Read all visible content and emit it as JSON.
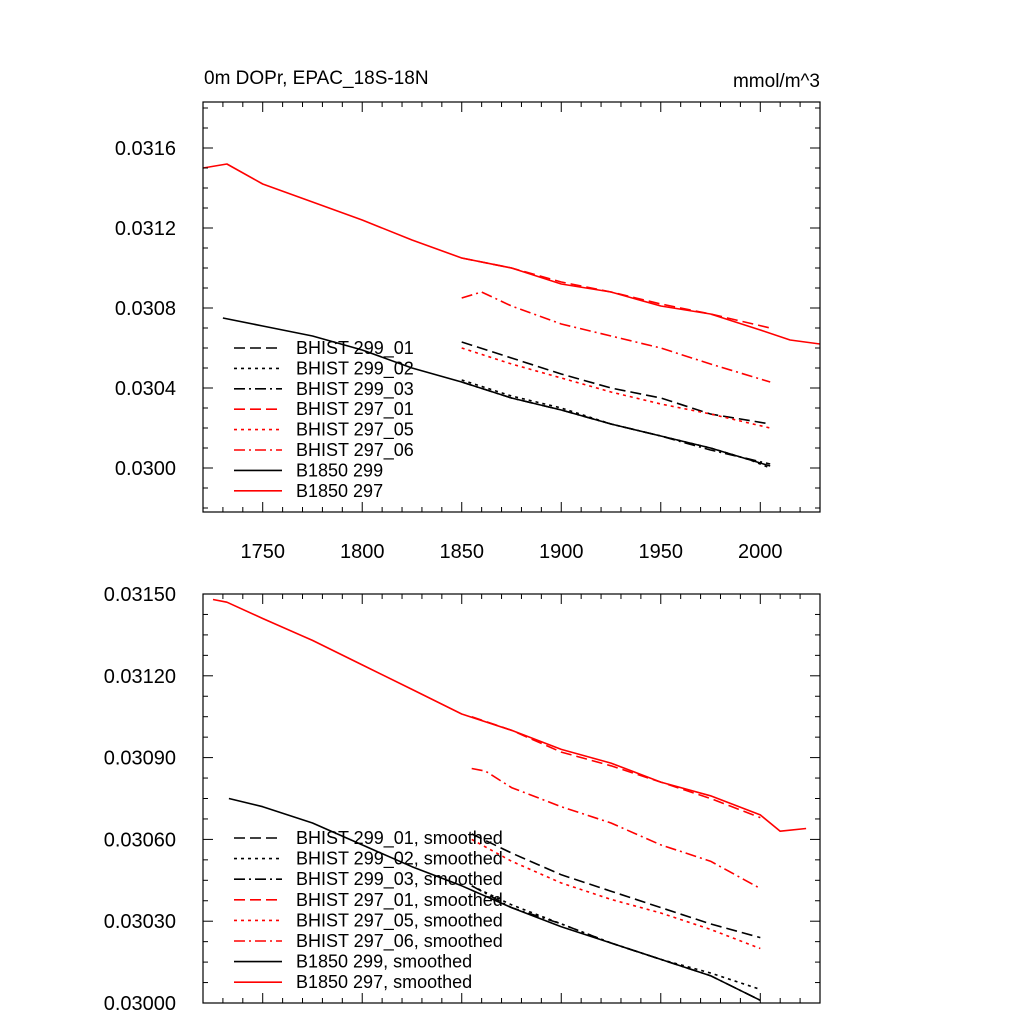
{
  "colors": {
    "black": "#000000",
    "red": "#ff0000"
  },
  "chart_data": [
    {
      "type": "line",
      "title": "0m DOPr, EPAC_18S-18N",
      "units": "mmol/m^3",
      "xlim": [
        1720,
        2030
      ],
      "ylim": [
        0.02978,
        0.03183
      ],
      "x_ticks": [
        1750,
        1800,
        1850,
        1900,
        1950,
        2000
      ],
      "x_tick_labels": [
        "1750",
        "1800",
        "1850",
        "1900",
        "1950",
        "2000"
      ],
      "y_ticks": [
        0.03,
        0.0304,
        0.0308,
        0.0312,
        0.0316
      ],
      "y_tick_labels": [
        "0.0300",
        "0.0304",
        "0.0308",
        "0.0312",
        "0.0316"
      ],
      "legend_position": "lower-left",
      "series": [
        {
          "name": "BHIST 299_01",
          "color": "#000000",
          "dash": "dashed",
          "x": [
            1850,
            1875,
            1900,
            1925,
            1950,
            1975,
            2005
          ],
          "y": [
            0.03063,
            0.03055,
            0.03047,
            0.0304,
            0.03035,
            0.03027,
            0.03022
          ]
        },
        {
          "name": "BHIST 299_02",
          "color": "#000000",
          "dash": "dotted",
          "x": [
            1850,
            1875,
            1900,
            1925,
            1950,
            1975,
            1995,
            2005
          ],
          "y": [
            0.03044,
            0.03036,
            0.0303,
            0.03022,
            0.03016,
            0.0301,
            0.03004,
            0.03
          ]
        },
        {
          "name": "BHIST 299_03",
          "color": "#000000",
          "dash": "dashdot",
          "x": [
            1850,
            1875,
            1900,
            1925,
            1950,
            1975,
            2005
          ],
          "y": [
            0.03043,
            0.03035,
            0.03029,
            0.03022,
            0.03016,
            0.03009,
            0.03002
          ]
        },
        {
          "name": "BHIST 297_01",
          "color": "#ff0000",
          "dash": "dashed",
          "x": [
            1850,
            1875,
            1900,
            1925,
            1950,
            1975,
            2005
          ],
          "y": [
            0.03105,
            0.031,
            0.03093,
            0.03088,
            0.03082,
            0.03077,
            0.0307
          ]
        },
        {
          "name": "BHIST 297_05",
          "color": "#ff0000",
          "dash": "dotted",
          "x": [
            1850,
            1875,
            1900,
            1925,
            1950,
            1975,
            2005
          ],
          "y": [
            0.0306,
            0.03052,
            0.03045,
            0.03038,
            0.03032,
            0.03027,
            0.0302
          ]
        },
        {
          "name": "BHIST 297_06",
          "color": "#ff0000",
          "dash": "dashdot",
          "x": [
            1850,
            1860,
            1875,
            1900,
            1925,
            1950,
            1975,
            2005
          ],
          "y": [
            0.03085,
            0.03088,
            0.03081,
            0.03072,
            0.03066,
            0.0306,
            0.03052,
            0.03043
          ]
        },
        {
          "name": "B1850 299",
          "color": "#000000",
          "dash": "solid",
          "x": [
            1730,
            1750,
            1775,
            1800,
            1825,
            1850,
            1875,
            1900,
            1925,
            1950,
            1975,
            2005
          ],
          "y": [
            0.03075,
            0.03071,
            0.03066,
            0.03059,
            0.0305,
            0.03043,
            0.03035,
            0.03029,
            0.03022,
            0.03016,
            0.0301,
            0.03001
          ]
        },
        {
          "name": "B1850 297",
          "color": "#ff0000",
          "dash": "solid",
          "x": [
            1720,
            1732,
            1750,
            1775,
            1800,
            1825,
            1850,
            1875,
            1900,
            1925,
            1950,
            1975,
            2000,
            2015,
            2030
          ],
          "y": [
            0.0315,
            0.03152,
            0.03142,
            0.03133,
            0.03124,
            0.03114,
            0.03105,
            0.031,
            0.03092,
            0.03088,
            0.03081,
            0.03077,
            0.03069,
            0.03064,
            0.03062
          ]
        }
      ]
    },
    {
      "type": "line",
      "xlim": [
        1720,
        2030
      ],
      "ylim": [
        0.03,
        0.0315
      ],
      "x_ticks": [
        1750,
        1800,
        1850,
        1900,
        1950,
        2000
      ],
      "y_ticks": [
        0.03,
        0.0303,
        0.0306,
        0.0309,
        0.0312,
        0.0315
      ],
      "y_tick_labels": [
        "0.03000",
        "0.03030",
        "0.03060",
        "0.03090",
        "0.03120",
        "0.03150"
      ],
      "legend_position": "lower-left",
      "series": [
        {
          "name": "BHIST 299_01, smoothed",
          "color": "#000000",
          "dash": "dashed",
          "x": [
            1855,
            1875,
            1900,
            1925,
            1950,
            1975,
            2000
          ],
          "y": [
            0.03062,
            0.03055,
            0.03047,
            0.03041,
            0.03035,
            0.03029,
            0.03024
          ]
        },
        {
          "name": "BHIST 299_02, smoothed",
          "color": "#000000",
          "dash": "dotted",
          "x": [
            1855,
            1875,
            1900,
            1925,
            1950,
            1975,
            2000
          ],
          "y": [
            0.03043,
            0.03036,
            0.03029,
            0.03022,
            0.03016,
            0.03011,
            0.03005
          ]
        },
        {
          "name": "BHIST 299_03, smoothed",
          "color": "#000000",
          "dash": "dashdot",
          "x": [
            1855,
            1875,
            1900,
            1925,
            1950,
            1975,
            2000
          ],
          "y": [
            0.03043,
            0.03035,
            0.03029,
            0.03022,
            0.03016,
            0.0301,
            0.03001
          ]
        },
        {
          "name": "BHIST 297_01, smoothed",
          "color": "#ff0000",
          "dash": "dashed",
          "x": [
            1855,
            1875,
            1900,
            1925,
            1950,
            1975,
            2000
          ],
          "y": [
            0.03105,
            0.031,
            0.03092,
            0.03087,
            0.03081,
            0.03075,
            0.03068
          ]
        },
        {
          "name": "BHIST 297_05, smoothed",
          "color": "#ff0000",
          "dash": "dotted",
          "x": [
            1855,
            1875,
            1900,
            1925,
            1950,
            1975,
            2000
          ],
          "y": [
            0.0306,
            0.03052,
            0.03044,
            0.03038,
            0.03033,
            0.03027,
            0.0302
          ]
        },
        {
          "name": "BHIST 297_06, smoothed",
          "color": "#ff0000",
          "dash": "dashdot",
          "x": [
            1855,
            1862,
            1875,
            1900,
            1925,
            1950,
            1975,
            2000
          ],
          "y": [
            0.03086,
            0.03085,
            0.03079,
            0.03072,
            0.03066,
            0.03058,
            0.03052,
            0.03042
          ]
        },
        {
          "name": "B1850 299, smoothed",
          "color": "#000000",
          "dash": "solid",
          "x": [
            1733,
            1750,
            1775,
            1800,
            1825,
            1850,
            1875,
            1900,
            1925,
            1950,
            1975,
            2000
          ],
          "y": [
            0.03075,
            0.03072,
            0.03066,
            0.03058,
            0.0305,
            0.03043,
            0.03035,
            0.03028,
            0.03022,
            0.03016,
            0.0301,
            0.03001
          ]
        },
        {
          "name": "B1850 297, smoothed",
          "color": "#ff0000",
          "dash": "solid",
          "x": [
            1725,
            1732,
            1750,
            1775,
            1800,
            1825,
            1850,
            1875,
            1900,
            1925,
            1950,
            1975,
            2000,
            2010,
            2023
          ],
          "y": [
            0.03148,
            0.03147,
            0.03141,
            0.03133,
            0.03124,
            0.03115,
            0.03106,
            0.031,
            0.03093,
            0.03088,
            0.03081,
            0.03076,
            0.03069,
            0.03063,
            0.03064
          ]
        }
      ]
    }
  ]
}
